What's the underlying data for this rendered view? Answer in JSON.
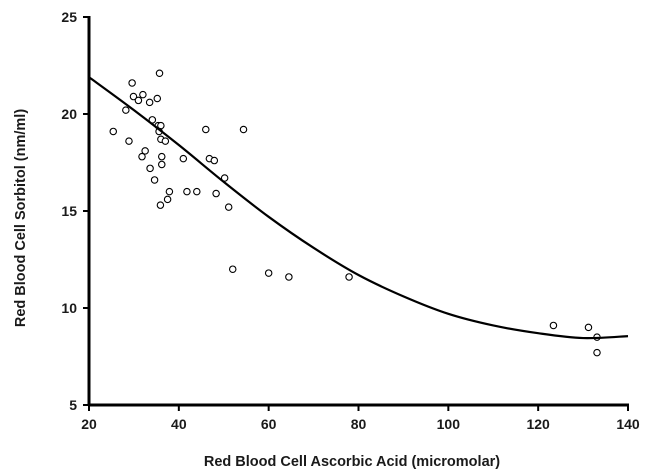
{
  "chart_data": {
    "type": "scatter",
    "title": "",
    "xlabel": "Red Blood Cell Ascorbic Acid (micromolar)",
    "ylabel": "Red Blood Cell Sorbitol (nm/ml)",
    "xlim": [
      20,
      140
    ],
    "ylim": [
      5,
      25
    ],
    "xticks": [
      20,
      40,
      60,
      80,
      100,
      120,
      140
    ],
    "yticks": [
      5,
      10,
      15,
      20,
      25
    ],
    "xtick_labels": [
      "20",
      "40",
      "60",
      "80",
      "100",
      "120",
      "140"
    ],
    "ytick_labels": [
      "5",
      "10",
      "15",
      "20",
      "25"
    ],
    "grid": false,
    "legend": "none",
    "points": [
      {
        "x": 29.6,
        "y": 21.6
      },
      {
        "x": 29.9,
        "y": 20.9
      },
      {
        "x": 31.0,
        "y": 20.7
      },
      {
        "x": 32.0,
        "y": 21.0
      },
      {
        "x": 35.7,
        "y": 22.1
      },
      {
        "x": 35.2,
        "y": 20.8
      },
      {
        "x": 33.5,
        "y": 20.6
      },
      {
        "x": 28.2,
        "y": 20.2
      },
      {
        "x": 25.4,
        "y": 19.1
      },
      {
        "x": 28.9,
        "y": 18.6
      },
      {
        "x": 34.1,
        "y": 19.7
      },
      {
        "x": 35.4,
        "y": 19.4
      },
      {
        "x": 36.0,
        "y": 19.4
      },
      {
        "x": 35.6,
        "y": 19.1
      },
      {
        "x": 36.0,
        "y": 18.7
      },
      {
        "x": 37.0,
        "y": 18.6
      },
      {
        "x": 32.5,
        "y": 18.1
      },
      {
        "x": 31.8,
        "y": 17.8
      },
      {
        "x": 36.2,
        "y": 17.8
      },
      {
        "x": 36.2,
        "y": 17.4
      },
      {
        "x": 33.6,
        "y": 17.2
      },
      {
        "x": 34.6,
        "y": 16.6
      },
      {
        "x": 37.9,
        "y": 16.0
      },
      {
        "x": 37.5,
        "y": 15.6
      },
      {
        "x": 35.9,
        "y": 15.3
      },
      {
        "x": 41.0,
        "y": 17.7
      },
      {
        "x": 41.8,
        "y": 16.0
      },
      {
        "x": 44.0,
        "y": 16.0
      },
      {
        "x": 46.0,
        "y": 19.2
      },
      {
        "x": 46.8,
        "y": 17.7
      },
      {
        "x": 47.9,
        "y": 17.6
      },
      {
        "x": 48.3,
        "y": 15.9
      },
      {
        "x": 50.2,
        "y": 16.7
      },
      {
        "x": 51.1,
        "y": 15.2
      },
      {
        "x": 52.0,
        "y": 12.0
      },
      {
        "x": 54.4,
        "y": 19.2
      },
      {
        "x": 60.0,
        "y": 11.8
      },
      {
        "x": 64.5,
        "y": 11.6
      },
      {
        "x": 77.9,
        "y": 11.6
      },
      {
        "x": 123.4,
        "y": 9.1
      },
      {
        "x": 131.2,
        "y": 9.0
      },
      {
        "x": 133.1,
        "y": 8.5
      },
      {
        "x": 133.1,
        "y": 7.7
      }
    ],
    "fit_curve": [
      {
        "x": 20,
        "y": 21.9
      },
      {
        "x": 30,
        "y": 20.2
      },
      {
        "x": 40,
        "y": 18.4
      },
      {
        "x": 50,
        "y": 16.5
      },
      {
        "x": 60,
        "y": 14.7
      },
      {
        "x": 70,
        "y": 13.1
      },
      {
        "x": 80,
        "y": 11.7
      },
      {
        "x": 90,
        "y": 10.6
      },
      {
        "x": 100,
        "y": 9.7
      },
      {
        "x": 110,
        "y": 9.1
      },
      {
        "x": 120,
        "y": 8.7
      },
      {
        "x": 130,
        "y": 8.45
      },
      {
        "x": 140,
        "y": 8.55
      }
    ]
  }
}
